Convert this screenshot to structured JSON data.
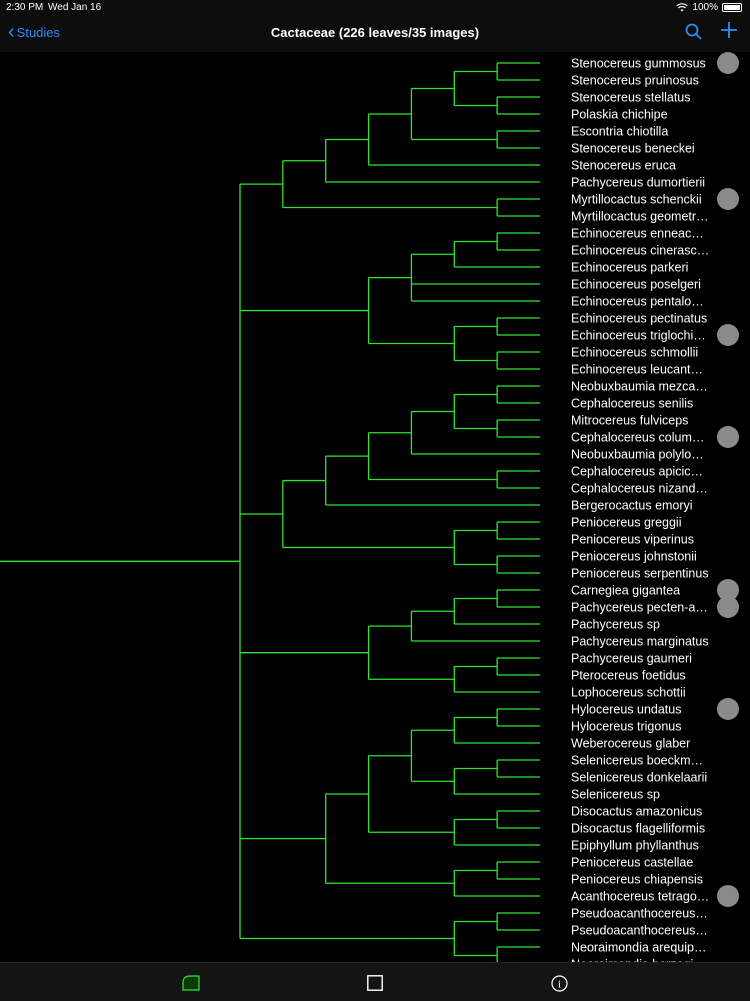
{
  "status": {
    "time": "2:30 PM",
    "date": "Wed Jan 16",
    "battery": "100%"
  },
  "nav": {
    "back_label": "Studies",
    "title": "Cactaceae (226 leaves/35 images)"
  },
  "leaves": [
    {
      "label": "Stenocereus gummosus",
      "image": true
    },
    {
      "label": "Stenocereus pruinosus"
    },
    {
      "label": "Stenocereus stellatus"
    },
    {
      "label": "Polaskia chichipe"
    },
    {
      "label": "Escontria chiotilla"
    },
    {
      "label": "Stenocereus beneckei"
    },
    {
      "label": "Stenocereus eruca"
    },
    {
      "label": "Pachycereus dumortierii"
    },
    {
      "label": "Myrtillocactus schenckii",
      "image": true
    },
    {
      "label": "Myrtillocactus geometr…"
    },
    {
      "label": "Echinocereus enneac…"
    },
    {
      "label": "Echinocereus cinerasc…"
    },
    {
      "label": "Echinocereus parkeri"
    },
    {
      "label": "Echinocereus poselgeri"
    },
    {
      "label": "Echinocereus pentalo…"
    },
    {
      "label": "Echinocereus pectinatus"
    },
    {
      "label": "Echinocereus triglochi…",
      "image": true
    },
    {
      "label": "Echinocereus schmollii"
    },
    {
      "label": "Echinocereus leucant…"
    },
    {
      "label": "Neobuxbaumia mezca…"
    },
    {
      "label": "Cephalocereus senilis"
    },
    {
      "label": "Mitrocereus fulviceps"
    },
    {
      "label": "Cephalocereus colum…",
      "image": true
    },
    {
      "label": "Neobuxbaumia polylo…"
    },
    {
      "label": "Cephalocereus apicic…"
    },
    {
      "label": "Cephalocereus nizand…"
    },
    {
      "label": "Bergerocactus emoryi"
    },
    {
      "label": "Peniocereus greggii"
    },
    {
      "label": "Peniocereus viperinus"
    },
    {
      "label": "Peniocereus johnstonii"
    },
    {
      "label": "Peniocereus serpentinus"
    },
    {
      "label": "Carnegiea gigantea",
      "image": true
    },
    {
      "label": "Pachycereus pecten-a…",
      "image": true
    },
    {
      "label": "Pachycereus sp"
    },
    {
      "label": "Pachycereus marginatus"
    },
    {
      "label": "Pachycereus gaumeri"
    },
    {
      "label": "Pterocereus foetidus"
    },
    {
      "label": "Lophocereus schottii"
    },
    {
      "label": "Hylocereus undatus",
      "image": true
    },
    {
      "label": "Hylocereus trigonus"
    },
    {
      "label": "Weberocereus glaber"
    },
    {
      "label": "Selenicereus boeckm…"
    },
    {
      "label": "Selenicereus donkelaarii"
    },
    {
      "label": "Selenicereus sp"
    },
    {
      "label": "Disocactus amazonicus"
    },
    {
      "label": "Disocactus flagelliformis"
    },
    {
      "label": "Epiphyllum phyllanthus"
    },
    {
      "label": "Peniocereus castellae"
    },
    {
      "label": "Peniocereus chiapensis"
    },
    {
      "label": "Acanthocereus tetrago…",
      "image": true
    },
    {
      "label": "Pseudoacanthocereus…"
    },
    {
      "label": "Pseudoacanthocereus…"
    },
    {
      "label": "Neoraimondia arequip…"
    },
    {
      "label": "Neoraimondia herzogi…"
    }
  ],
  "tree": [
    [
      [
        [
          [
            [
              [
                0,
                1
              ],
              [
                2,
                3
              ]
            ],
            [
              4,
              5
            ]
          ],
          6
        ],
        7
      ],
      [
        8,
        9
      ]
    ],
    [
      [
        [
          [
            10,
            11
          ],
          12
        ],
        13,
        14
      ],
      [
        [
          15,
          16
        ],
        [
          17,
          18
        ]
      ]
    ],
    [
      [
        [
          [
            [
              [
                19,
                20
              ],
              [
                21,
                22
              ]
            ],
            23
          ],
          [
            24,
            25
          ]
        ],
        26
      ],
      [
        [
          27,
          28
        ],
        [
          29,
          30
        ]
      ]
    ],
    [
      [
        [
          [
            31,
            32
          ],
          33
        ],
        34
      ],
      [
        [
          35,
          36
        ],
        37
      ]
    ],
    [
      [
        [
          [
            [
              38,
              39
            ],
            40
          ],
          [
            [
              41,
              42
            ],
            43
          ]
        ],
        [
          [
            44,
            45
          ],
          46
        ]
      ],
      [
        [
          47,
          48
        ],
        49
      ]
    ],
    [
      [
        [
          50,
          51
        ],
        [
          52,
          53
        ]
      ]
    ]
  ],
  "colors": {
    "branch": "#2ee62e",
    "accent": "#2e8cf7",
    "image_marker": "#8a8a8a"
  },
  "icons": {
    "search": "search-icon",
    "add": "plus-icon",
    "tree": "tree-view-icon",
    "square": "square-icon",
    "info": "info-icon"
  }
}
